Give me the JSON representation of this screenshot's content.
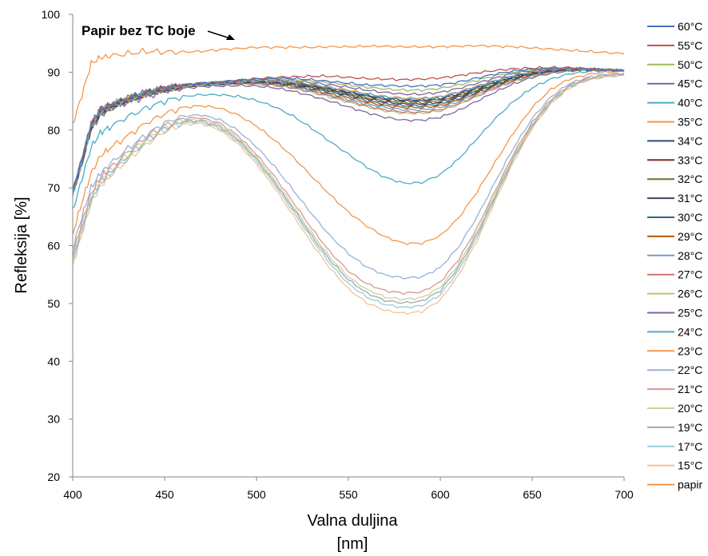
{
  "chart_data": {
    "type": "line",
    "title": "",
    "xlabel": "Valna duljina",
    "xlabel_unit": "[nm]",
    "ylabel": "Refleksija [%]",
    "xlim": [
      400,
      700
    ],
    "ylim": [
      20,
      100
    ],
    "x_ticks": [
      400,
      450,
      500,
      550,
      600,
      650,
      700
    ],
    "y_ticks": [
      20,
      30,
      40,
      50,
      60,
      70,
      80,
      90,
      100
    ],
    "grid": false,
    "legend_position": "right",
    "annotation": {
      "text": "Papir bez TC boje",
      "x": 440,
      "y": 95,
      "arrow_to": [
        490,
        94.5
      ]
    },
    "x": [
      400,
      405,
      410,
      415,
      420,
      430,
      440,
      450,
      460,
      470,
      480,
      490,
      500,
      510,
      520,
      530,
      540,
      550,
      560,
      570,
      580,
      590,
      600,
      610,
      620,
      630,
      640,
      650,
      660,
      670,
      680,
      690,
      700
    ],
    "series": [
      {
        "name": "60°C",
        "color": "#4472C4",
        "values": [
          69.5,
          75,
          81,
          83.5,
          84.3,
          85.5,
          86.5,
          87.3,
          87.8,
          88.1,
          88.3,
          88.6,
          88.8,
          88.9,
          88.9,
          88.7,
          88.4,
          88.1,
          87.8,
          87.7,
          87.6,
          87.6,
          87.8,
          88.3,
          89,
          89.7,
          90.2,
          90.5,
          90.6,
          90.6,
          90.5,
          90.4,
          90.3
        ]
      },
      {
        "name": "55°C",
        "color": "#C0504D",
        "values": [
          69.5,
          75,
          81,
          83.5,
          84.3,
          85.5,
          86.5,
          87.3,
          87.8,
          88.1,
          88.3,
          88.6,
          88.9,
          89.1,
          89.2,
          89.3,
          89.3,
          89.1,
          88.9,
          88.8,
          88.7,
          88.8,
          89,
          89.4,
          89.9,
          90.3,
          90.6,
          90.7,
          90.8,
          90.8,
          90.6,
          90.4,
          90.3
        ]
      },
      {
        "name": "50°C",
        "color": "#9BBB59",
        "values": [
          69.5,
          75,
          81,
          83.5,
          84.3,
          85.5,
          86.5,
          87.3,
          87.8,
          88.1,
          88.3,
          88.6,
          88.8,
          88.8,
          88.7,
          88.5,
          88.2,
          87.8,
          87.4,
          87.1,
          86.9,
          86.9,
          87.2,
          87.8,
          88.6,
          89.4,
          90,
          90.4,
          90.6,
          90.6,
          90.5,
          90.4,
          90.3
        ]
      },
      {
        "name": "45°C",
        "color": "#8064A2",
        "values": [
          69.5,
          75,
          81,
          83.5,
          84.3,
          85.5,
          86.5,
          87.3,
          87.8,
          88.1,
          88.3,
          88.5,
          88.7,
          88.6,
          88.5,
          88.2,
          87.8,
          87.4,
          86.9,
          86.5,
          86.2,
          86.2,
          86.5,
          87.2,
          88.1,
          89,
          89.8,
          90.3,
          90.5,
          90.6,
          90.5,
          90.4,
          90.3
        ]
      },
      {
        "name": "40°C",
        "color": "#4BACC6",
        "values": [
          69,
          74.5,
          80.5,
          83,
          84,
          85.2,
          86.2,
          87,
          87.5,
          87.8,
          88,
          88.3,
          88.5,
          88.4,
          88.2,
          87.8,
          87.3,
          86.8,
          86.2,
          85.7,
          85.4,
          85.4,
          85.7,
          86.5,
          87.5,
          88.5,
          89.4,
          90,
          90.4,
          90.5,
          90.5,
          90.4,
          90.3
        ]
      },
      {
        "name": "35°C",
        "color": "#F79646",
        "values": [
          69,
          74.5,
          80.5,
          83,
          84,
          85.2,
          86.2,
          87,
          87.5,
          87.8,
          88,
          88.3,
          88.5,
          88.5,
          88.3,
          87.9,
          87.4,
          86.9,
          86.3,
          85.8,
          85.5,
          85.5,
          85.8,
          86.6,
          87.6,
          88.6,
          89.5,
          90.1,
          90.5,
          90.6,
          90.5,
          90.4,
          90.3
        ]
      },
      {
        "name": "34°C",
        "color": "#2C4D75",
        "values": [
          69,
          74.5,
          80.5,
          83,
          84,
          85.2,
          86.2,
          87,
          87.5,
          87.8,
          88,
          88.3,
          88.5,
          88.4,
          88.2,
          87.7,
          87.2,
          86.6,
          86,
          85.5,
          85.2,
          85.2,
          85.5,
          86.3,
          87.4,
          88.4,
          89.3,
          90,
          90.4,
          90.5,
          90.5,
          90.4,
          90.3
        ]
      },
      {
        "name": "33°C",
        "color": "#772C2A",
        "values": [
          69,
          74.5,
          80.5,
          83,
          84,
          85.2,
          86.2,
          87,
          87.5,
          87.8,
          88,
          88.3,
          88.4,
          88.3,
          88.1,
          87.6,
          87.1,
          86.5,
          85.9,
          85.3,
          85,
          85,
          85.3,
          86.1,
          87.2,
          88.3,
          89.2,
          89.9,
          90.3,
          90.5,
          90.5,
          90.4,
          90.3
        ]
      },
      {
        "name": "32°C",
        "color": "#5F7530",
        "values": [
          69,
          74.5,
          80.5,
          83,
          84,
          85.2,
          86.2,
          87,
          87.5,
          87.8,
          88,
          88.2,
          88.4,
          88.3,
          88,
          87.5,
          86.9,
          86.3,
          85.6,
          85,
          84.7,
          84.7,
          85,
          85.9,
          87,
          88.1,
          89.1,
          89.8,
          90.3,
          90.5,
          90.5,
          90.4,
          90.3
        ]
      },
      {
        "name": "31°C",
        "color": "#4D3B62",
        "values": [
          69,
          74.5,
          80.5,
          83,
          84,
          85.2,
          86.2,
          87,
          87.5,
          87.8,
          88,
          88.2,
          88.3,
          88.2,
          87.9,
          87.4,
          86.8,
          86.1,
          85.4,
          84.8,
          84.5,
          84.5,
          84.8,
          85.7,
          86.8,
          87.9,
          89,
          89.7,
          90.2,
          90.5,
          90.5,
          90.4,
          90.3
        ]
      },
      {
        "name": "30°C",
        "color": "#276A7C",
        "values": [
          69,
          74.5,
          80.5,
          83,
          84,
          85.2,
          86.2,
          87,
          87.5,
          87.8,
          88,
          88.2,
          88.3,
          88.1,
          87.8,
          87.2,
          86.6,
          85.9,
          85.1,
          84.5,
          84.2,
          84.2,
          84.5,
          85.4,
          86.6,
          87.8,
          88.9,
          89.7,
          90.2,
          90.5,
          90.5,
          90.4,
          90.3
        ]
      },
      {
        "name": "29°C",
        "color": "#B65708",
        "values": [
          69,
          74.5,
          80.5,
          83,
          84,
          85.2,
          86.2,
          87,
          87.5,
          87.8,
          88,
          88.2,
          88.2,
          88,
          87.6,
          87,
          86.3,
          85.6,
          84.8,
          84.2,
          83.9,
          83.9,
          84.2,
          85.2,
          86.4,
          87.6,
          88.7,
          89.6,
          90.1,
          90.4,
          90.5,
          90.4,
          90.3
        ]
      },
      {
        "name": "28°C",
        "color": "#729ACA",
        "values": [
          69,
          74.5,
          80.5,
          83,
          84,
          85.2,
          86.2,
          87,
          87.5,
          87.8,
          87.9,
          88.1,
          88.1,
          87.9,
          87.5,
          86.8,
          86.1,
          85.3,
          84.5,
          83.9,
          83.5,
          83.5,
          83.9,
          84.9,
          86.2,
          87.5,
          88.6,
          89.5,
          90.1,
          90.4,
          90.5,
          90.4,
          90.3
        ]
      },
      {
        "name": "27°C",
        "color": "#CD7371",
        "values": [
          69,
          74.5,
          80.5,
          83,
          84,
          85.2,
          86.2,
          87,
          87.5,
          87.7,
          87.9,
          88,
          88,
          87.8,
          87.3,
          86.6,
          85.9,
          85,
          84.2,
          83.5,
          83.1,
          83.1,
          83.5,
          84.6,
          85.9,
          87.3,
          88.5,
          89.4,
          90,
          90.4,
          90.5,
          90.4,
          90.3
        ]
      },
      {
        "name": "26°C",
        "color": "#AFC97A",
        "values": [
          69,
          74.5,
          80.5,
          83,
          84,
          85.2,
          86.2,
          87,
          87.5,
          87.7,
          87.8,
          88,
          87.9,
          87.7,
          87.2,
          86.5,
          85.7,
          84.8,
          84,
          83.3,
          82.9,
          82.9,
          83.3,
          84.4,
          85.8,
          87.2,
          88.4,
          89.3,
          90,
          90.4,
          90.5,
          90.4,
          90.3
        ]
      },
      {
        "name": "25°C",
        "color": "#8064A2",
        "values": [
          69,
          74,
          80,
          82.5,
          83.5,
          84.8,
          85.8,
          86.7,
          87.2,
          87.5,
          87.6,
          87.7,
          87.6,
          87.3,
          86.7,
          85.9,
          85,
          84,
          83,
          82.2,
          81.7,
          81.7,
          82.2,
          83.4,
          85,
          86.6,
          88,
          89.1,
          89.8,
          90.2,
          90.4,
          90.4,
          90.3
        ]
      },
      {
        "name": "24°C",
        "color": "#4BACC6",
        "values": [
          66,
          71.5,
          77,
          79.5,
          80.5,
          82.3,
          83.8,
          85,
          85.8,
          86.1,
          86.1,
          85.8,
          85.1,
          84,
          82.4,
          80.3,
          78,
          75.8,
          73.6,
          71.8,
          70.8,
          70.9,
          72.3,
          75,
          78.5,
          82,
          85,
          87.3,
          88.8,
          89.7,
          90.1,
          90.3,
          90.3
        ]
      },
      {
        "name": "23°C",
        "color": "#F79646",
        "values": [
          62,
          67.5,
          72.5,
          75.5,
          76.8,
          79,
          81.2,
          82.8,
          83.9,
          84.2,
          83.8,
          82.6,
          80.7,
          78.2,
          75.3,
          72,
          68.8,
          65.8,
          63.4,
          61.5,
          60.4,
          60.4,
          61.7,
          64.8,
          69.3,
          74.5,
          79.6,
          83.9,
          87,
          88.8,
          89.6,
          90,
          90.1
        ]
      },
      {
        "name": "22°C",
        "color": "#95B3D7",
        "values": [
          59.5,
          65,
          70,
          72.5,
          74,
          76.8,
          79.2,
          81.2,
          82.4,
          82.6,
          81.8,
          79.9,
          77.1,
          73.6,
          69.6,
          65.5,
          61.7,
          58.6,
          56.3,
          54.9,
          54.4,
          54.6,
          56.2,
          59.8,
          65,
          71.1,
          77,
          82,
          85.7,
          88,
          89.1,
          89.6,
          89.8
        ]
      },
      {
        "name": "21°C",
        "color": "#D99694",
        "values": [
          58.5,
          64,
          69,
          71.8,
          73.3,
          76.2,
          78.8,
          80.8,
          82,
          82.1,
          81.2,
          79,
          75.8,
          71.9,
          67.5,
          63,
          58.9,
          55.6,
          53.4,
          52.2,
          51.8,
          52,
          53.7,
          57.6,
          63.1,
          69.6,
          76,
          81.3,
          85.2,
          87.7,
          88.9,
          89.5,
          89.7
        ]
      },
      {
        "name": "20°C",
        "color": "#C3D69B",
        "values": [
          58,
          63.5,
          68.6,
          71.3,
          72.9,
          75.8,
          78.4,
          80.5,
          81.7,
          81.8,
          80.9,
          78.6,
          75.3,
          71.3,
          66.8,
          62.2,
          58,
          54.6,
          52.4,
          51.1,
          50.7,
          51,
          52.8,
          56.8,
          62.4,
          69.1,
          75.6,
          81,
          85,
          87.6,
          88.8,
          89.4,
          89.6
        ]
      },
      {
        "name": "19°C",
        "color": "#A6A6A6",
        "values": [
          57.5,
          63,
          68.2,
          71,
          72.6,
          75.5,
          78.2,
          80.3,
          81.5,
          81.6,
          80.6,
          78.3,
          75,
          70.9,
          66.4,
          61.7,
          57.5,
          54.1,
          51.8,
          50.5,
          50.1,
          50.4,
          52.2,
          56.3,
          62,
          68.7,
          75.3,
          80.8,
          84.9,
          87.5,
          88.8,
          89.4,
          89.6
        ]
      },
      {
        "name": "17°C",
        "color": "#93CDDD",
        "values": [
          57,
          62.5,
          67.8,
          70.6,
          72.3,
          75.2,
          77.9,
          80,
          81.3,
          81.4,
          80.3,
          78,
          74.6,
          70.5,
          65.9,
          61.2,
          56.9,
          53.4,
          51.1,
          49.8,
          49.3,
          49.6,
          51.5,
          55.7,
          61.5,
          68.3,
          75,
          80.6,
          84.7,
          87.4,
          88.7,
          89.3,
          89.5
        ]
      },
      {
        "name": "15°C",
        "color": "#FAC090",
        "values": [
          56.5,
          62,
          67.3,
          70.2,
          71.9,
          74.8,
          77.5,
          79.7,
          81,
          81.1,
          80,
          77.6,
          74.1,
          69.9,
          65.2,
          60.4,
          56.1,
          52.5,
          50.1,
          48.8,
          48.3,
          48.6,
          50.6,
          54.9,
          60.9,
          67.8,
          74.6,
          80.3,
          84.5,
          87.2,
          88.6,
          89.2,
          89.4
        ]
      },
      {
        "name": "papir",
        "color": "#F79646",
        "values": [
          81,
          86,
          91.5,
          92.5,
          92.8,
          93.2,
          93.6,
          93.5,
          93.5,
          93.6,
          93.9,
          94.1,
          94.3,
          94.3,
          94.3,
          94.3,
          94.4,
          94.4,
          94.5,
          94.5,
          94.4,
          94.4,
          94.4,
          94.5,
          94.6,
          94.5,
          94.4,
          94.2,
          94,
          93.8,
          93.6,
          93.4,
          93.2
        ]
      }
    ]
  }
}
